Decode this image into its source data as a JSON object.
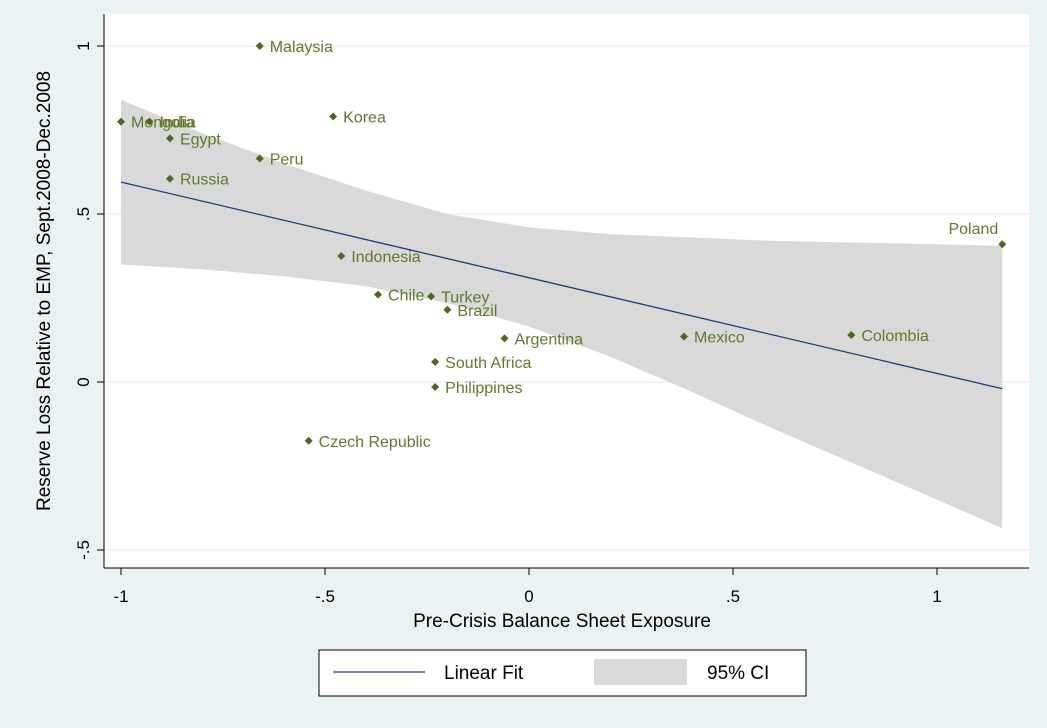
{
  "colors": {
    "background": "#eaf2f3",
    "plot_background": "#ffffff",
    "gridline": "#eaf2f3",
    "marker": "#4a6b1e",
    "marker_label": "#5e7a2a",
    "fit_line": "#1a3d7c",
    "ci_band": "#d9d9d9"
  },
  "chart_data": {
    "type": "scatter",
    "xlabel": "Pre-Crisis Balance Sheet Exposure",
    "ylabel": "Reserve Loss Relative to EMP, Sept.2008-Dec.2008",
    "xlim": [
      -1.05,
      1.2
    ],
    "ylim": [
      -0.56,
      1.1
    ],
    "grid": true,
    "x_ticks": [
      {
        "value": -1,
        "label": "-1"
      },
      {
        "value": -0.5,
        "label": "-.5"
      },
      {
        "value": 0,
        "label": "0"
      },
      {
        "value": 0.5,
        "label": ".5"
      },
      {
        "value": 1,
        "label": "1"
      }
    ],
    "y_ticks": [
      {
        "value": -0.5,
        "label": "-.5"
      },
      {
        "value": 0,
        "label": "0"
      },
      {
        "value": 0.5,
        "label": ".5"
      },
      {
        "value": 1,
        "label": "1"
      }
    ],
    "points": [
      {
        "label": "Malaysia",
        "x": -0.66,
        "y": 1.0
      },
      {
        "label": "Korea",
        "x": -0.48,
        "y": 0.79
      },
      {
        "label": "Mongolia",
        "x": -1.0,
        "y": 0.775
      },
      {
        "label": "India",
        "x": -0.93,
        "y": 0.775
      },
      {
        "label": "Egypt",
        "x": -0.88,
        "y": 0.725
      },
      {
        "label": "Peru",
        "x": -0.66,
        "y": 0.665
      },
      {
        "label": "Russia",
        "x": -0.88,
        "y": 0.605
      },
      {
        "label": "Poland",
        "x": 1.16,
        "y": 0.41
      },
      {
        "label": "Indonesia",
        "x": -0.46,
        "y": 0.375
      },
      {
        "label": "Chile",
        "x": -0.37,
        "y": 0.26
      },
      {
        "label": "Turkey",
        "x": -0.24,
        "y": 0.255
      },
      {
        "label": "Brazil",
        "x": -0.2,
        "y": 0.215
      },
      {
        "label": "Argentina",
        "x": -0.06,
        "y": 0.13
      },
      {
        "label": "Mexico",
        "x": 0.38,
        "y": 0.135
      },
      {
        "label": "Colombia",
        "x": 0.79,
        "y": 0.14
      },
      {
        "label": "South Africa",
        "x": -0.23,
        "y": 0.06
      },
      {
        "label": "Philippines",
        "x": -0.23,
        "y": -0.015
      },
      {
        "label": "Czech Republic",
        "x": -0.54,
        "y": -0.175
      }
    ],
    "fit": {
      "name": "Linear Fit",
      "x": [
        -1.0,
        1.16
      ],
      "y": [
        0.595,
        -0.02
      ]
    },
    "ci": {
      "name": "95% CI",
      "x": [
        -1.0,
        -0.8,
        -0.6,
        -0.4,
        -0.2,
        0.0,
        0.2,
        0.4,
        0.6,
        0.8,
        1.0,
        1.16
      ],
      "upper": [
        0.84,
        0.74,
        0.65,
        0.57,
        0.5,
        0.46,
        0.44,
        0.43,
        0.42,
        0.415,
        0.41,
        0.405
      ],
      "lower": [
        0.35,
        0.335,
        0.315,
        0.285,
        0.235,
        0.165,
        0.075,
        -0.03,
        -0.14,
        -0.245,
        -0.35,
        -0.435
      ]
    },
    "legend": {
      "position": "bottom",
      "entries": [
        "Linear Fit",
        "95% CI"
      ]
    }
  }
}
